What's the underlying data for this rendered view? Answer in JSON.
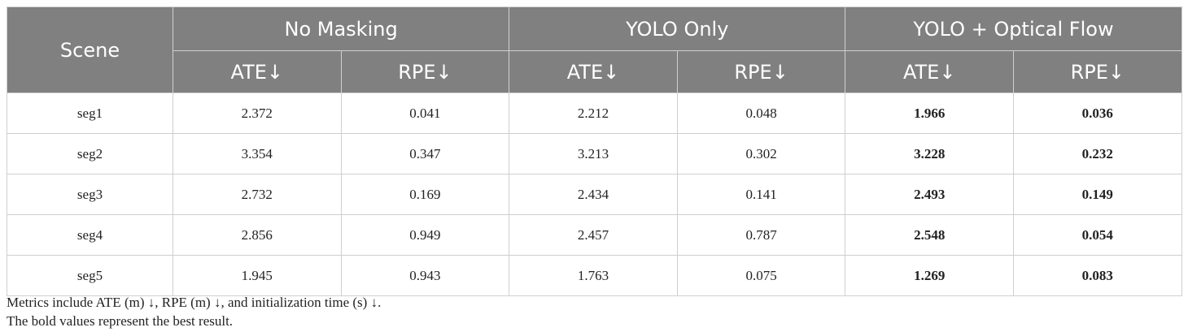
{
  "table": {
    "header": {
      "groups": [
        "Scene",
        "No Masking",
        "YOLO Only",
        "YOLO + Optical Flow"
      ],
      "metrics": [
        "ATE↓",
        "RPE↓",
        "ATE↓",
        "RPE↓",
        "ATE↓",
        "RPE↓"
      ]
    },
    "rows": [
      [
        "seg1",
        "2.372",
        "0.041",
        "2.212",
        "0.048",
        "1.966",
        "0.036"
      ],
      [
        "seg2",
        "3.354",
        "0.347",
        "3.213",
        "0.302",
        "3.228",
        "0.232"
      ],
      [
        "seg3",
        "2.732",
        "0.169",
        "2.434",
        "0.141",
        "2.493",
        "0.149"
      ],
      [
        "seg4",
        "2.856",
        "0.949",
        "2.457",
        "0.787",
        "2.548",
        "0.054"
      ],
      [
        "seg5",
        "1.945",
        "0.943",
        "1.763",
        "0.075",
        "1.269",
        "0.083"
      ]
    ]
  },
  "notes": [
    "Metrics include ATE (m) ↓, RPE (m) ↓, and initialization time (s) ↓.",
    "The bold values represent the best result."
  ]
}
